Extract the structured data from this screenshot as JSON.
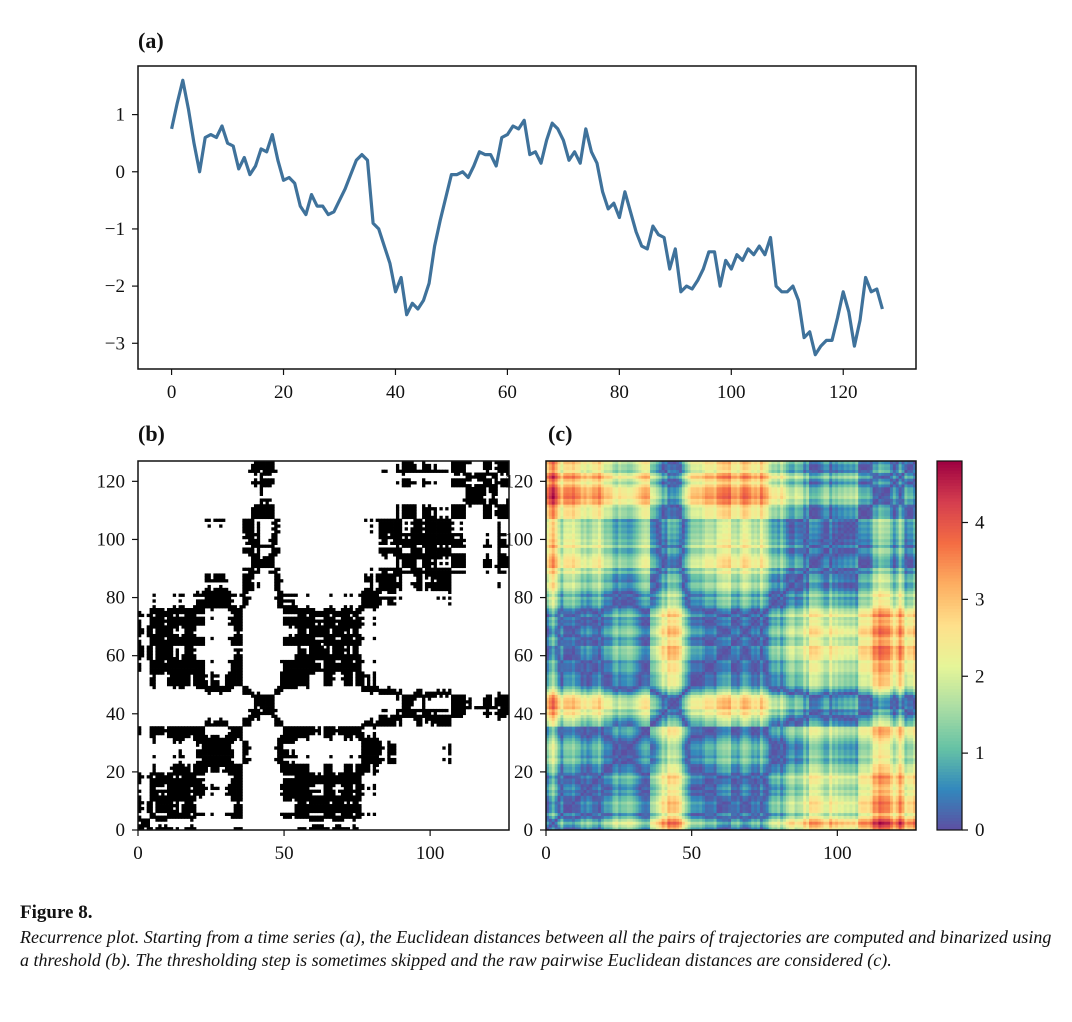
{
  "caption": {
    "title": "Figure 8.",
    "text": "Recurrence plot. Starting from a time series (a), the Euclidean distances between all the pairs of trajectories are computed and binarized using a threshold (b). The thresholding step is sometimes skipped and the raw pairwise Euclidean distances are considered (c)."
  },
  "chart_data": [
    {
      "type": "line",
      "panel_label": "(a)",
      "xlim": [
        -6,
        133
      ],
      "ylim": [
        -3.45,
        1.85
      ],
      "xticks": [
        0,
        20,
        40,
        60,
        80,
        100,
        120
      ],
      "yticks": [
        1,
        0,
        -1,
        -2,
        -3
      ],
      "ytick_labels": [
        "1",
        "0",
        "−1",
        "−2",
        "−3"
      ],
      "color": "#3f729b",
      "grid": false,
      "series": [
        {
          "x": [
            0,
            1,
            2,
            3,
            4,
            5,
            6,
            7,
            8,
            9,
            10,
            11,
            12,
            13,
            14,
            15,
            16,
            17,
            18,
            19,
            20,
            21,
            22,
            23,
            24,
            25,
            26,
            27,
            28,
            29,
            30,
            31,
            32,
            33,
            34,
            35,
            36,
            37,
            38,
            39,
            40,
            41,
            42,
            43,
            44,
            45,
            46,
            47,
            48,
            49,
            50,
            51,
            52,
            53,
            54,
            55,
            56,
            57,
            58,
            59,
            60,
            61,
            62,
            63,
            64,
            65,
            66,
            67,
            68,
            69,
            70,
            71,
            72,
            73,
            74,
            75,
            76,
            77,
            78,
            79,
            80,
            81,
            82,
            83,
            84,
            85,
            86,
            87,
            88,
            89,
            90,
            91,
            92,
            93,
            94,
            95,
            96,
            97,
            98,
            99,
            100,
            101,
            102,
            103,
            104,
            105,
            106,
            107,
            108,
            109,
            110,
            111,
            112,
            113,
            114,
            115,
            116,
            117,
            118,
            119,
            120,
            121,
            122,
            123,
            124,
            125,
            126,
            127
          ],
          "y": [
            0.75,
            1.2,
            1.6,
            1.1,
            0.5,
            0.0,
            0.6,
            0.65,
            0.6,
            0.8,
            0.5,
            0.45,
            0.05,
            0.25,
            -0.05,
            0.1,
            0.4,
            0.35,
            0.65,
            0.2,
            -0.15,
            -0.1,
            -0.2,
            -0.6,
            -0.75,
            -0.4,
            -0.6,
            -0.6,
            -0.75,
            -0.7,
            -0.5,
            -0.3,
            -0.05,
            0.2,
            0.3,
            0.2,
            -0.9,
            -1.0,
            -1.3,
            -1.6,
            -2.1,
            -1.85,
            -2.5,
            -2.3,
            -2.4,
            -2.25,
            -1.95,
            -1.3,
            -0.85,
            -0.45,
            -0.05,
            -0.05,
            0.0,
            -0.1,
            0.1,
            0.35,
            0.3,
            0.3,
            0.1,
            0.6,
            0.65,
            0.8,
            0.75,
            0.9,
            0.3,
            0.35,
            0.15,
            0.55,
            0.85,
            0.75,
            0.55,
            0.2,
            0.35,
            0.15,
            0.75,
            0.35,
            0.15,
            -0.35,
            -0.65,
            -0.55,
            -0.8,
            -0.35,
            -0.7,
            -1.05,
            -1.3,
            -1.35,
            -0.95,
            -1.1,
            -1.15,
            -1.7,
            -1.35,
            -2.1,
            -2.0,
            -2.05,
            -1.9,
            -1.7,
            -1.4,
            -1.4,
            -2.0,
            -1.55,
            -1.7,
            -1.45,
            -1.55,
            -1.35,
            -1.45,
            -1.3,
            -1.45,
            -1.15,
            -2.0,
            -2.1,
            -2.1,
            -2.0,
            -2.25,
            -2.9,
            -2.8,
            -3.2,
            -3.05,
            -2.95,
            -2.95,
            -2.55,
            -2.1,
            -2.45,
            -3.05,
            -2.6,
            -1.85,
            -2.1,
            -2.05,
            -2.4
          ]
        }
      ]
    },
    {
      "type": "heatmap",
      "panel_label": "(b)",
      "description_values": "binary recurrence matrix derived from series (a) with threshold on pairwise Euclidean distance",
      "xlim": [
        0,
        127
      ],
      "ylim": [
        0,
        127
      ],
      "xticks": [
        0,
        50,
        100
      ],
      "yticks": [
        0,
        20,
        40,
        60,
        80,
        100,
        120
      ],
      "threshold": 0.55,
      "colors": [
        "#ffffff",
        "#000000"
      ]
    },
    {
      "type": "heatmap",
      "panel_label": "(c)",
      "xlim": [
        0,
        127
      ],
      "ylim": [
        0,
        127
      ],
      "xticks": [
        0,
        50,
        100
      ],
      "yticks": [
        0,
        20,
        40,
        60,
        80,
        100,
        120
      ],
      "colorbar_ticks": [
        0,
        1,
        2,
        3,
        4
      ],
      "colorbar_max": 4.8,
      "colormap": "Spectral_r",
      "colors": [
        "#5e4fa2",
        "#3288bd",
        "#66c2a5",
        "#abdda4",
        "#e6f598",
        "#fee08b",
        "#fdae61",
        "#f46d43",
        "#d53e4f",
        "#9e0142"
      ]
    }
  ]
}
